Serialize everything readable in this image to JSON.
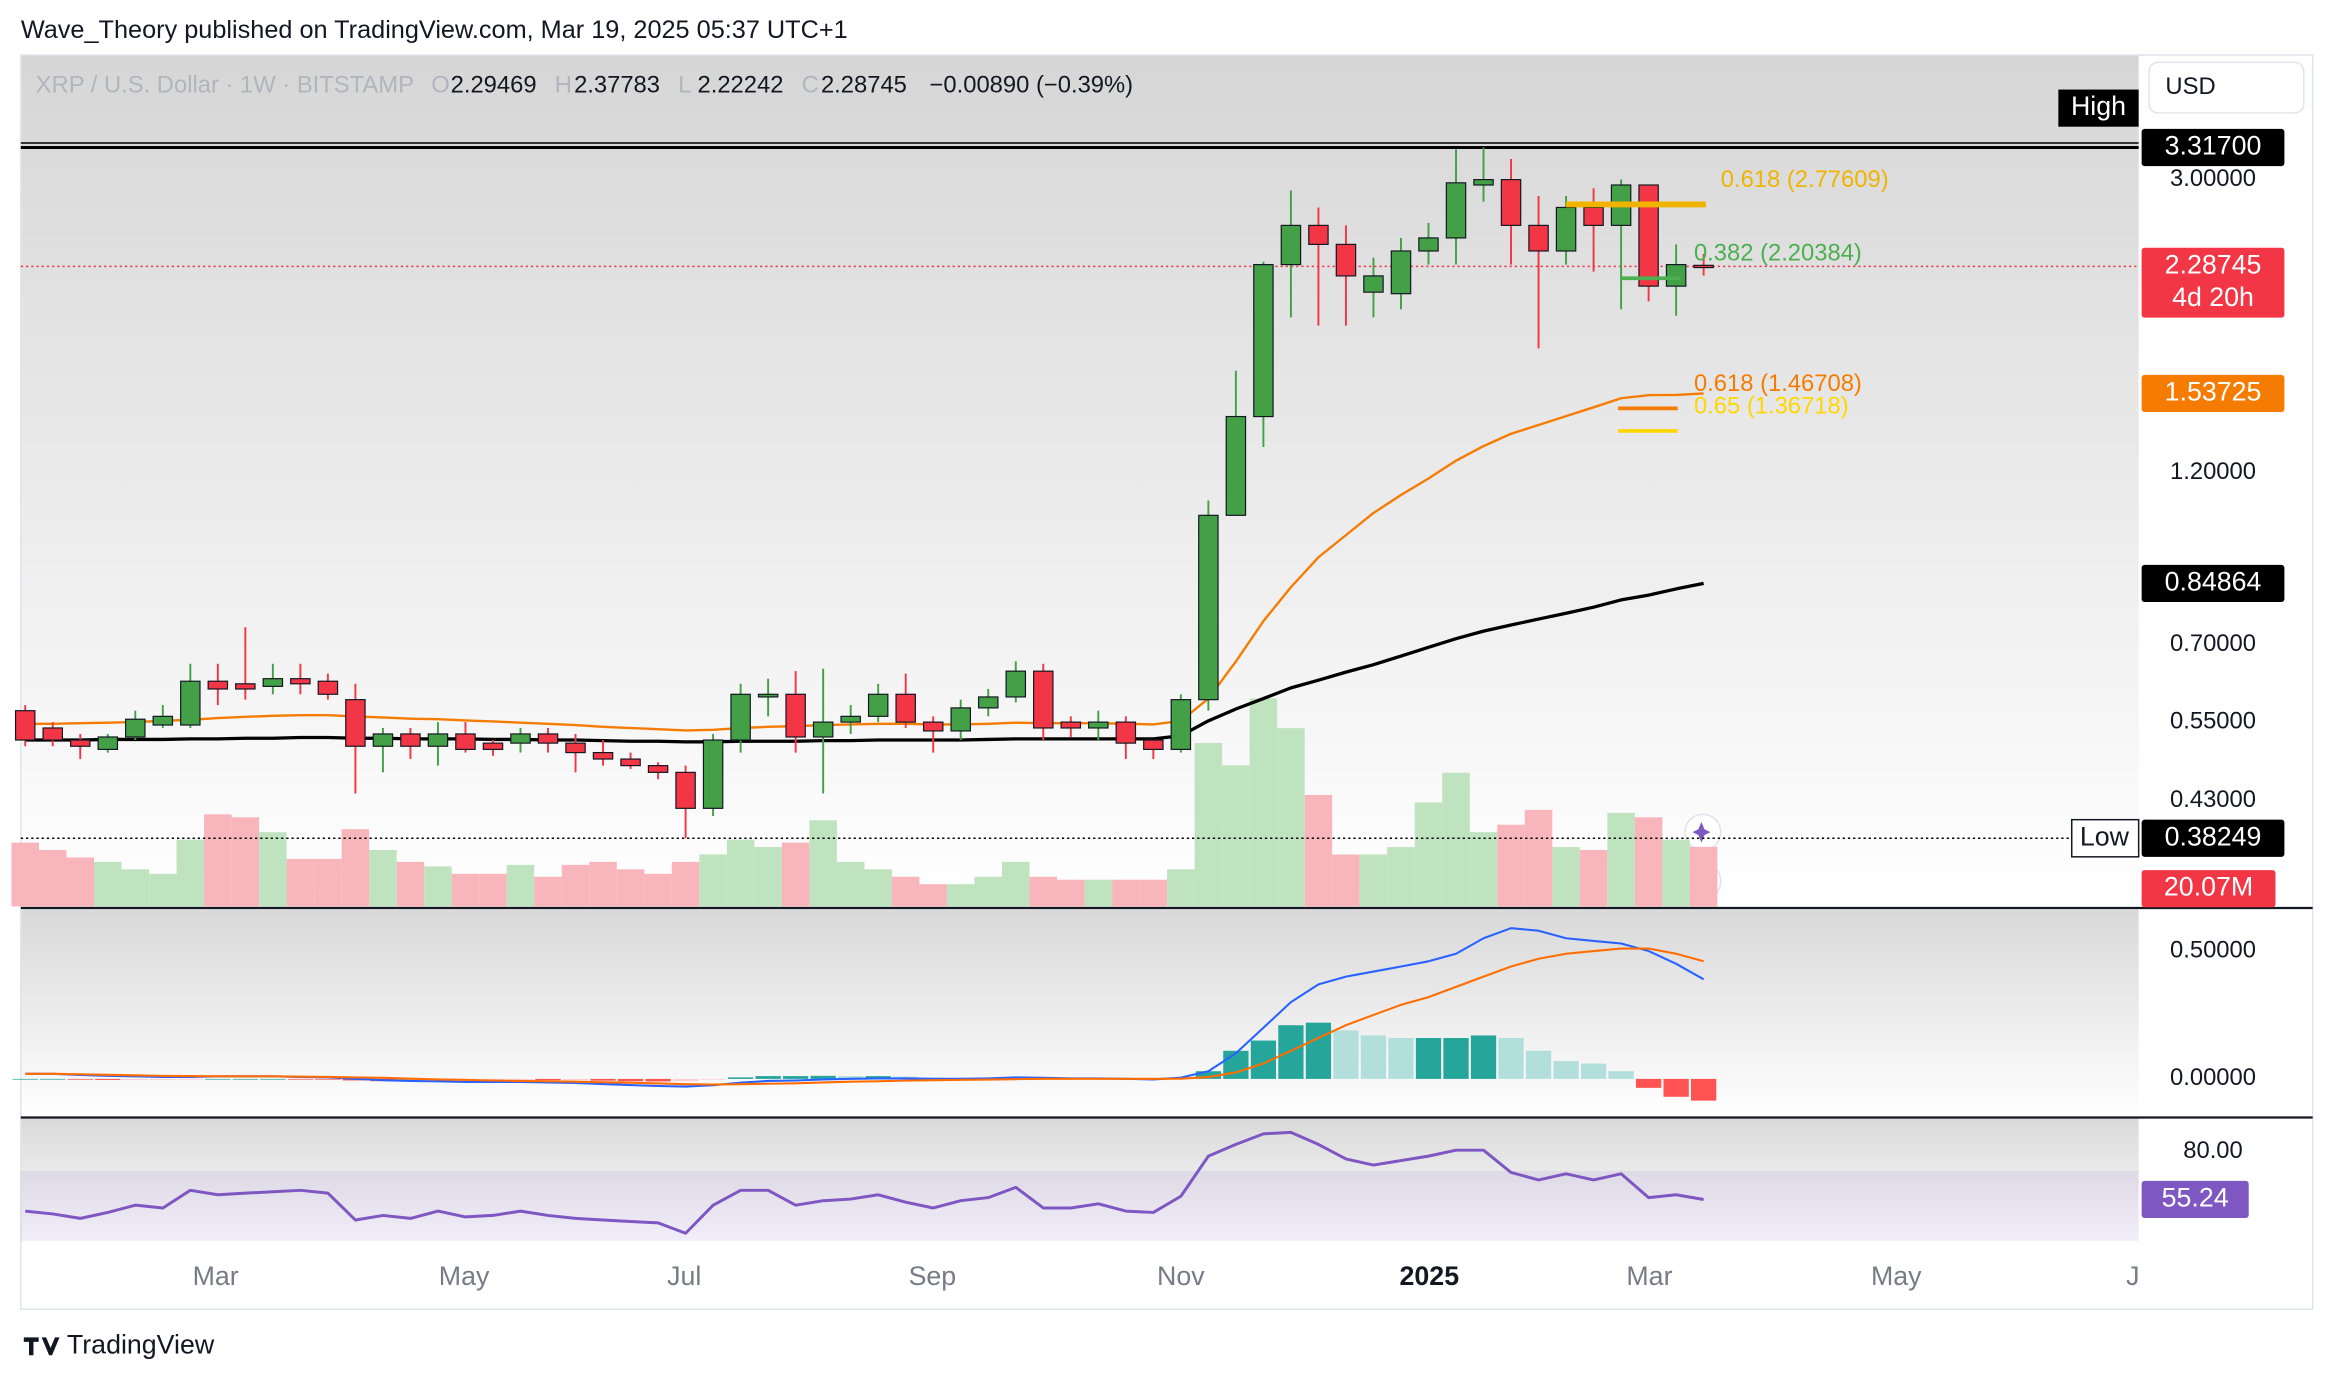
{
  "header": {
    "publisher": "Wave_Theory published on TradingView.com, Mar 19, 2025 05:37 UTC+1",
    "symbol": "XRP / U.S. Dollar · 1W · BITSTAMP",
    "ohlc": [
      {
        "key": "O",
        "value": 2.29469
      },
      {
        "key": "H",
        "value": 2.37783
      },
      {
        "key": "L",
        "value": 2.22242
      },
      {
        "key": "C",
        "value": 2.28745
      }
    ],
    "change": "−0.00890 (−0.39%)",
    "currency": "USD",
    "brand": "TradingView"
  },
  "chart_data": [
    {
      "type": "candlestick",
      "log_scale": true,
      "ylim": [
        0.309,
        4.43
      ],
      "xlim": [
        -0.16,
        76.81
      ],
      "yticks": [
        {
          "value": 3,
          "label": "3.00000"
        },
        {
          "value": 1.2,
          "label": "1.20000"
        },
        {
          "value": 0.7,
          "label": "0.70000"
        },
        {
          "value": 0.55,
          "label": "0.55000"
        },
        {
          "value": 0.43,
          "label": "0.43000"
        }
      ],
      "xticks": [
        {
          "value": 6.92,
          "label": "Mar"
        },
        {
          "value": 15.95,
          "label": "May"
        },
        {
          "value": 23.95,
          "label": "Jul"
        },
        {
          "value": 32.97,
          "label": "Sep"
        },
        {
          "value": 42.0,
          "label": "Nov"
        },
        {
          "value": 51.03,
          "label": "2025"
        },
        {
          "value": 59.03,
          "label": "Mar"
        },
        {
          "value": 68.0,
          "label": "May"
        },
        {
          "value": 76.6,
          "label": "J"
        }
      ],
      "categories": [
        null,
        null,
        null,
        null,
        null,
        null,
        null,
        null,
        null,
        null,
        null,
        null,
        null,
        null,
        null,
        null,
        null,
        null,
        null,
        null,
        null,
        null,
        null,
        null,
        null,
        null,
        null,
        null,
        null,
        null,
        null,
        null,
        null,
        null,
        null,
        null,
        null,
        null,
        null,
        null,
        null,
        null,
        null,
        null,
        null,
        null,
        null,
        null,
        null,
        null,
        null,
        null,
        null,
        null,
        null,
        null,
        null,
        null,
        null,
        null,
        null,
        null
      ],
      "open": [
        0.57,
        0.54,
        0.52,
        0.505,
        0.525,
        0.545,
        0.545,
        0.625,
        0.62,
        0.615,
        0.63,
        0.625,
        0.59,
        0.51,
        0.53,
        0.51,
        0.53,
        0.515,
        0.515,
        0.53,
        0.515,
        0.5,
        0.49,
        0.48,
        0.47,
        0.42,
        0.52,
        0.595,
        0.6,
        0.525,
        0.55,
        0.56,
        0.6,
        0.55,
        0.535,
        0.575,
        0.595,
        0.645,
        0.55,
        0.54,
        0.55,
        0.52,
        0.505,
        0.59,
        1.05,
        1.43,
        2.3,
        2.6,
        2.45,
        2.11,
        2.1,
        2.4,
        2.5,
        2.95,
        3.0,
        2.6,
        2.4,
        2.75,
        2.6,
        2.95,
        2.15,
        2.29469
      ],
      "high": [
        0.58,
        0.55,
        0.53,
        0.53,
        0.57,
        0.58,
        0.66,
        0.66,
        0.74,
        0.66,
        0.66,
        0.64,
        0.62,
        0.54,
        0.54,
        0.55,
        0.55,
        0.52,
        0.54,
        0.54,
        0.53,
        0.52,
        0.5,
        0.485,
        0.48,
        0.53,
        0.62,
        0.63,
        0.645,
        0.65,
        0.58,
        0.62,
        0.64,
        0.56,
        0.59,
        0.61,
        0.665,
        0.66,
        0.56,
        0.57,
        0.56,
        0.52,
        0.6,
        1.1,
        1.65,
        2.32,
        2.9,
        2.75,
        2.6,
        2.35,
        2.5,
        2.62,
        3.3,
        3.317,
        3.2,
        2.85,
        2.85,
        2.92,
        3.0,
        2.95,
        2.45,
        2.37783
      ],
      "low": [
        0.51,
        0.51,
        0.49,
        0.5,
        0.52,
        0.54,
        0.54,
        0.58,
        0.59,
        0.6,
        0.6,
        0.59,
        0.44,
        0.47,
        0.49,
        0.48,
        0.5,
        0.495,
        0.5,
        0.5,
        0.47,
        0.48,
        0.475,
        0.46,
        0.38249,
        0.41,
        0.5,
        0.56,
        0.5,
        0.44,
        0.53,
        0.55,
        0.54,
        0.5,
        0.52,
        0.56,
        0.585,
        0.52,
        0.525,
        0.52,
        0.49,
        0.49,
        0.5,
        0.57,
        1.05,
        1.3,
        1.95,
        1.9,
        1.9,
        1.95,
        2.0,
        2.3,
        2.3,
        2.8,
        2.3,
        1.77,
        2.3,
        2.25,
        2.0,
        2.05,
        1.96,
        2.22242
      ],
      "close": [
        0.52,
        0.52,
        0.51,
        0.525,
        0.555,
        0.56,
        0.625,
        0.61,
        0.61,
        0.63,
        0.62,
        0.6,
        0.51,
        0.53,
        0.51,
        0.53,
        0.505,
        0.505,
        0.53,
        0.515,
        0.5,
        0.49,
        0.48,
        0.47,
        0.42,
        0.52,
        0.6,
        0.6,
        0.525,
        0.55,
        0.56,
        0.6,
        0.55,
        0.535,
        0.575,
        0.595,
        0.645,
        0.54,
        0.54,
        0.55,
        0.515,
        0.505,
        0.59,
        1.05,
        1.43,
        2.3,
        2.6,
        2.45,
        2.22,
        2.22,
        2.4,
        2.5,
        2.97,
        3.0,
        2.6,
        2.4,
        2.75,
        2.6,
        2.95,
        2.15,
        2.3,
        2.28745
      ],
      "up_color": "#43a047",
      "down_color": "#f23645",
      "overlays": [
        {
          "color": "#f57c00",
          "values": [
            0.547,
            0.547,
            0.548,
            0.549,
            0.55,
            0.552,
            0.554,
            0.557,
            0.559,
            0.561,
            0.562,
            0.562,
            0.56,
            0.558,
            0.556,
            0.555,
            0.553,
            0.551,
            0.549,
            0.547,
            0.545,
            0.542,
            0.54,
            0.538,
            0.536,
            0.537,
            0.54,
            0.542,
            0.543,
            0.545,
            0.546,
            0.547,
            0.547,
            0.546,
            0.546,
            0.547,
            0.549,
            0.548,
            0.548,
            0.548,
            0.547,
            0.546,
            0.552,
            0.592,
            0.665,
            0.754,
            0.839,
            0.921,
            0.987,
            1.058,
            1.119,
            1.178,
            1.246,
            1.304,
            1.355,
            1.393,
            1.432,
            1.472,
            1.514,
            1.529,
            1.53,
            1.53725
          ]
        },
        {
          "color": "#000000",
          "values": [
            0.52,
            0.52,
            0.52,
            0.521,
            0.521,
            0.521,
            0.522,
            0.522,
            0.523,
            0.523,
            0.524,
            0.524,
            0.523,
            0.523,
            0.522,
            0.522,
            0.522,
            0.521,
            0.521,
            0.52,
            0.52,
            0.519,
            0.518,
            0.518,
            0.517,
            0.517,
            0.518,
            0.518,
            0.518,
            0.519,
            0.519,
            0.52,
            0.52,
            0.52,
            0.52,
            0.521,
            0.522,
            0.522,
            0.522,
            0.522,
            0.522,
            0.522,
            0.527,
            0.552,
            0.573,
            0.592,
            0.612,
            0.627,
            0.643,
            0.658,
            0.676,
            0.695,
            0.714,
            0.731,
            0.745,
            0.759,
            0.773,
            0.788,
            0.806,
            0.818,
            0.834,
            0.84864
          ]
        }
      ],
      "volume": {
        "values": [
          21.5,
          19,
          16.5,
          15,
          12.5,
          11,
          22.5,
          31,
          30,
          25,
          16,
          16,
          26,
          19,
          15,
          13.5,
          11,
          11,
          14,
          10,
          14,
          15,
          12.5,
          11,
          15,
          17.5,
          22.5,
          20,
          21.5,
          29,
          15,
          12.5,
          10,
          7.5,
          7.5,
          10,
          15,
          10,
          9,
          9,
          9,
          9,
          12.5,
          55,
          47.5,
          70,
          60,
          37.5,
          17.5,
          17.5,
          20,
          35,
          45,
          25,
          27.5,
          32.5,
          20,
          19,
          31.5,
          30,
          22.5,
          20.07
        ],
        "up_color": "#bfe3bf",
        "down_color": "#f8b6bc",
        "last_label": "20.07M"
      },
      "levels": [
        {
          "name": "High",
          "value": 3.317,
          "label": "3.31700"
        },
        {
          "name": "Low",
          "value": 0.38249,
          "label": "0.38249"
        }
      ],
      "last_price": {
        "value": 2.28745,
        "label": "2.28745",
        "countdown": "4d 20h",
        "color": "#f23645"
      },
      "fib_levels": [
        {
          "label": "0.618 (2.77609)",
          "value": 2.77609,
          "color": "#f0b400"
        },
        {
          "label": "0.382 (2.20384)",
          "value": 2.20384,
          "color": "#4caf50"
        },
        {
          "label": "0.618 (1.46708)",
          "value": 1.46708,
          "color": "#f57c00"
        },
        {
          "label": "0.65 (1.36718)",
          "value": 1.36718,
          "color": "#ffd600"
        }
      ]
    },
    {
      "type": "macd",
      "ylim": [
        -0.151,
        0.663
      ],
      "yticks": [
        {
          "value": 0.5,
          "label": "0.50000"
        },
        {
          "value": 0,
          "label": "0.00000"
        }
      ],
      "histogram": [
        0,
        0,
        -0.003,
        -0.004,
        -0.004,
        -0.004,
        -0.003,
        0,
        0,
        0,
        -0.001,
        -0.002,
        -0.006,
        -0.009,
        -0.009,
        -0.008,
        -0.008,
        -0.006,
        -0.004,
        -0.005,
        -0.005,
        -0.007,
        -0.009,
        -0.01,
        -0.009,
        -0.003,
        0.006,
        0.011,
        0.011,
        0.012,
        0.011,
        0.011,
        0.009,
        0.005,
        0.004,
        0.005,
        0.007,
        0.004,
        0.002,
        0.002,
        0,
        -0.002,
        0.004,
        0.03,
        0.11,
        0.15,
        0.21,
        0.22,
        0.19,
        0.17,
        0.16,
        0.16,
        0.16,
        0.17,
        0.16,
        0.11,
        0.07,
        0.06,
        0.03,
        -0.035,
        -0.07,
        -0.085
      ],
      "histogram_colors": [
        "#26a69a",
        "#b2dfdb",
        "#ff5252",
        "#ffcdd2"
      ],
      "series": [
        {
          "color": "#2962ff",
          "values": [
            0.02,
            0.02,
            0.015,
            0.012,
            0.01,
            0.008,
            0.008,
            0.01,
            0.01,
            0.01,
            0.008,
            0.006,
            0,
            -0.005,
            -0.008,
            -0.01,
            -0.012,
            -0.012,
            -0.012,
            -0.014,
            -0.016,
            -0.02,
            -0.024,
            -0.028,
            -0.03,
            -0.025,
            -0.015,
            -0.008,
            -0.006,
            -0.002,
            0,
            0.002,
            0.002,
            0,
            0,
            0.002,
            0.006,
            0.004,
            0.002,
            0.002,
            0,
            -0.002,
            0.005,
            0.03,
            0.1,
            0.2,
            0.3,
            0.37,
            0.4,
            0.42,
            0.44,
            0.46,
            0.49,
            0.55,
            0.59,
            0.58,
            0.55,
            0.54,
            0.53,
            0.5,
            0.45,
            0.39
          ]
        },
        {
          "color": "#ff6d00",
          "values": [
            0.02,
            0.02,
            0.018,
            0.016,
            0.014,
            0.012,
            0.011,
            0.01,
            0.01,
            0.01,
            0.009,
            0.008,
            0.006,
            0.004,
            0.001,
            -0.002,
            -0.004,
            -0.006,
            -0.008,
            -0.009,
            -0.011,
            -0.013,
            -0.015,
            -0.018,
            -0.021,
            -0.022,
            -0.021,
            -0.019,
            -0.017,
            -0.014,
            -0.011,
            -0.009,
            -0.007,
            -0.005,
            -0.004,
            -0.003,
            -0.001,
            0,
            0,
            0,
            0,
            0,
            0.001,
            0.007,
            0.025,
            0.06,
            0.11,
            0.16,
            0.21,
            0.25,
            0.29,
            0.32,
            0.36,
            0.4,
            0.44,
            0.47,
            0.49,
            0.5,
            0.51,
            0.51,
            0.49,
            0.46
          ]
        }
      ]
    },
    {
      "type": "rsi",
      "ylim": [
        33.8,
        97.7
      ],
      "yticks": [
        {
          "value": 80,
          "label": "80.00"
        }
      ],
      "band": [
        30,
        70
      ],
      "color": "#7e57c2",
      "values": [
        49.2,
        47.7,
        45.4,
        48.5,
        52.3,
        50.8,
        60,
        57.7,
        58.5,
        59.2,
        60,
        58.5,
        44.6,
        47,
        45.4,
        49.2,
        46.2,
        47,
        49.2,
        47,
        45.4,
        44.6,
        43.8,
        43.1,
        37.7,
        52.3,
        60,
        60,
        52.3,
        54.6,
        55.4,
        57.7,
        53.8,
        50.8,
        54.6,
        56.2,
        61.5,
        50.8,
        50.8,
        53,
        49.2,
        48.5,
        56.9,
        77.7,
        83.8,
        89.2,
        90,
        83.8,
        76.2,
        73.1,
        75.4,
        77.7,
        80.8,
        80.8,
        69.2,
        65.4,
        68.5,
        65.4,
        68.5,
        56.2,
        57.7,
        55.24
      ]
    }
  ]
}
